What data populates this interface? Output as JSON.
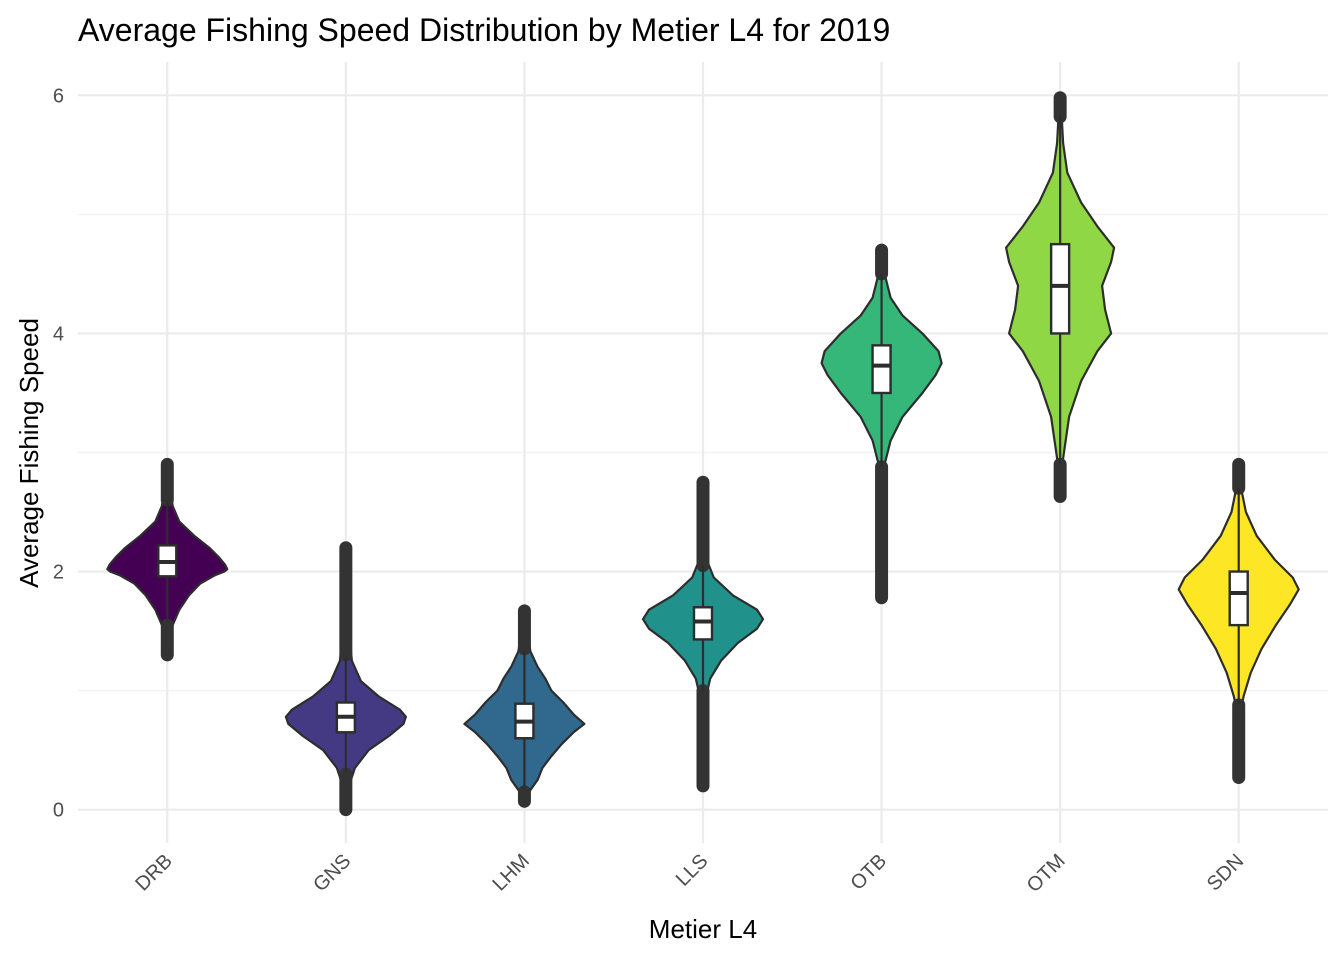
{
  "chart_data": {
    "type": "violin",
    "title": "Average Fishing Speed Distribution by Metier L4 for 2019",
    "xlabel": "Metier L4",
    "ylabel": "Average Fishing Speed",
    "ylim": [
      -0.28,
      6.28
    ],
    "yticks": [
      0,
      2,
      4,
      6
    ],
    "grid": true,
    "legend": "none",
    "categories": [
      "DRB",
      "GNS",
      "LHM",
      "LLS",
      "OTB",
      "OTM",
      "SDN"
    ],
    "series": [
      {
        "category": "DRB",
        "color": "#440154",
        "violin_range": [
          1.3,
          2.9
        ],
        "box": {
          "q1": 1.96,
          "median": 2.08,
          "q3": 2.22
        },
        "whiskers": [
          1.58,
          2.6
        ],
        "outlier_range": [
          [
            1.3,
            1.55
          ],
          [
            2.6,
            2.9
          ]
        ],
        "density": [
          [
            1.3,
            0.01
          ],
          [
            1.45,
            0.03
          ],
          [
            1.55,
            0.09
          ],
          [
            1.68,
            0.2
          ],
          [
            1.8,
            0.36
          ],
          [
            1.9,
            0.55
          ],
          [
            1.97,
            0.8
          ],
          [
            2.0,
            0.95
          ],
          [
            2.02,
            1.0
          ],
          [
            2.06,
            0.96
          ],
          [
            2.12,
            0.86
          ],
          [
            2.2,
            0.7
          ],
          [
            2.3,
            0.45
          ],
          [
            2.42,
            0.2
          ],
          [
            2.55,
            0.09
          ],
          [
            2.7,
            0.05
          ],
          [
            2.9,
            0.01
          ]
        ]
      },
      {
        "category": "GNS",
        "color": "#443983",
        "violin_range": [
          0.0,
          2.2
        ],
        "box": {
          "q1": 0.65,
          "median": 0.78,
          "q3": 0.9
        },
        "whiskers": [
          0.32,
          1.28
        ],
        "outlier_range": [
          [
            0.0,
            0.3
          ],
          [
            1.3,
            2.2
          ]
        ],
        "density": [
          [
            0.0,
            0.01
          ],
          [
            0.2,
            0.05
          ],
          [
            0.35,
            0.15
          ],
          [
            0.5,
            0.38
          ],
          [
            0.62,
            0.72
          ],
          [
            0.72,
            0.96
          ],
          [
            0.78,
            1.0
          ],
          [
            0.84,
            0.9
          ],
          [
            0.95,
            0.55
          ],
          [
            1.08,
            0.25
          ],
          [
            1.25,
            0.1
          ],
          [
            1.5,
            0.05
          ],
          [
            1.9,
            0.025
          ],
          [
            2.2,
            0.01
          ]
        ]
      },
      {
        "category": "LHM",
        "color": "#31688e",
        "violin_range": [
          0.07,
          1.67
        ],
        "box": {
          "q1": 0.6,
          "median": 0.74,
          "q3": 0.89
        },
        "whiskers": [
          0.17,
          1.33
        ],
        "outlier_range": [
          [
            0.07,
            0.15
          ],
          [
            1.35,
            1.67
          ]
        ],
        "density": [
          [
            0.07,
            0.02
          ],
          [
            0.15,
            0.08
          ],
          [
            0.25,
            0.22
          ],
          [
            0.35,
            0.3
          ],
          [
            0.45,
            0.45
          ],
          [
            0.55,
            0.62
          ],
          [
            0.65,
            0.82
          ],
          [
            0.72,
            1.0
          ],
          [
            0.8,
            0.82
          ],
          [
            0.9,
            0.65
          ],
          [
            1.0,
            0.45
          ],
          [
            1.1,
            0.35
          ],
          [
            1.2,
            0.22
          ],
          [
            1.33,
            0.1
          ],
          [
            1.5,
            0.05
          ],
          [
            1.67,
            0.01
          ]
        ]
      },
      {
        "category": "LLS",
        "color": "#21918c",
        "violin_range": [
          0.2,
          2.75
        ],
        "box": {
          "q1": 1.43,
          "median": 1.58,
          "q3": 1.7
        },
        "whiskers": [
          1.0,
          2.05
        ],
        "outlier_range": [
          [
            0.2,
            1.0
          ],
          [
            2.05,
            2.75
          ]
        ],
        "density": [
          [
            0.2,
            0.02
          ],
          [
            0.6,
            0.025
          ],
          [
            0.95,
            0.05
          ],
          [
            1.1,
            0.12
          ],
          [
            1.25,
            0.3
          ],
          [
            1.4,
            0.58
          ],
          [
            1.52,
            0.9
          ],
          [
            1.6,
            1.0
          ],
          [
            1.68,
            0.9
          ],
          [
            1.8,
            0.5
          ],
          [
            1.95,
            0.18
          ],
          [
            2.1,
            0.06
          ],
          [
            2.4,
            0.025
          ],
          [
            2.75,
            0.01
          ]
        ]
      },
      {
        "category": "OTB",
        "color": "#35b779",
        "violin_range": [
          1.78,
          4.7
        ],
        "box": {
          "q1": 3.5,
          "median": 3.73,
          "q3": 3.9
        },
        "whiskers": [
          2.88,
          4.5
        ],
        "outlier_range": [
          [
            1.78,
            2.88
          ],
          [
            4.5,
            4.7
          ]
        ],
        "density": [
          [
            1.78,
            0.01
          ],
          [
            2.5,
            0.025
          ],
          [
            2.9,
            0.05
          ],
          [
            3.1,
            0.15
          ],
          [
            3.3,
            0.35
          ],
          [
            3.5,
            0.68
          ],
          [
            3.65,
            0.9
          ],
          [
            3.75,
            1.0
          ],
          [
            3.85,
            0.95
          ],
          [
            4.0,
            0.68
          ],
          [
            4.15,
            0.35
          ],
          [
            4.3,
            0.15
          ],
          [
            4.5,
            0.05
          ],
          [
            4.7,
            0.01
          ]
        ]
      },
      {
        "category": "OTM",
        "color": "#8fd744",
        "violin_range": [
          2.63,
          5.98
        ],
        "box": {
          "q1": 4.0,
          "median": 4.4,
          "q3": 4.75
        },
        "whiskers": [
          2.9,
          5.82
        ],
        "outlier_range": [
          [
            2.63,
            2.9
          ],
          [
            5.82,
            5.98
          ]
        ],
        "density": [
          [
            2.63,
            0.01
          ],
          [
            2.95,
            0.05
          ],
          [
            3.3,
            0.15
          ],
          [
            3.6,
            0.35
          ],
          [
            3.85,
            0.62
          ],
          [
            4.0,
            0.85
          ],
          [
            4.2,
            0.75
          ],
          [
            4.4,
            0.7
          ],
          [
            4.6,
            0.85
          ],
          [
            4.72,
            0.9
          ],
          [
            4.9,
            0.62
          ],
          [
            5.1,
            0.35
          ],
          [
            5.35,
            0.12
          ],
          [
            5.6,
            0.05
          ],
          [
            5.98,
            0.01
          ]
        ]
      },
      {
        "category": "SDN",
        "color": "#fde725",
        "violin_range": [
          0.27,
          2.9
        ],
        "box": {
          "q1": 1.55,
          "median": 1.82,
          "q3": 2.0
        },
        "whiskers": [
          0.9,
          2.7
        ],
        "outlier_range": [
          [
            0.27,
            0.88
          ],
          [
            2.7,
            2.9
          ]
        ],
        "density": [
          [
            0.27,
            0.01
          ],
          [
            0.8,
            0.025
          ],
          [
            0.95,
            0.08
          ],
          [
            1.15,
            0.2
          ],
          [
            1.35,
            0.38
          ],
          [
            1.55,
            0.62
          ],
          [
            1.72,
            0.85
          ],
          [
            1.85,
            1.0
          ],
          [
            1.95,
            0.9
          ],
          [
            2.1,
            0.6
          ],
          [
            2.3,
            0.3
          ],
          [
            2.5,
            0.12
          ],
          [
            2.7,
            0.04
          ],
          [
            2.9,
            0.01
          ]
        ]
      }
    ]
  }
}
